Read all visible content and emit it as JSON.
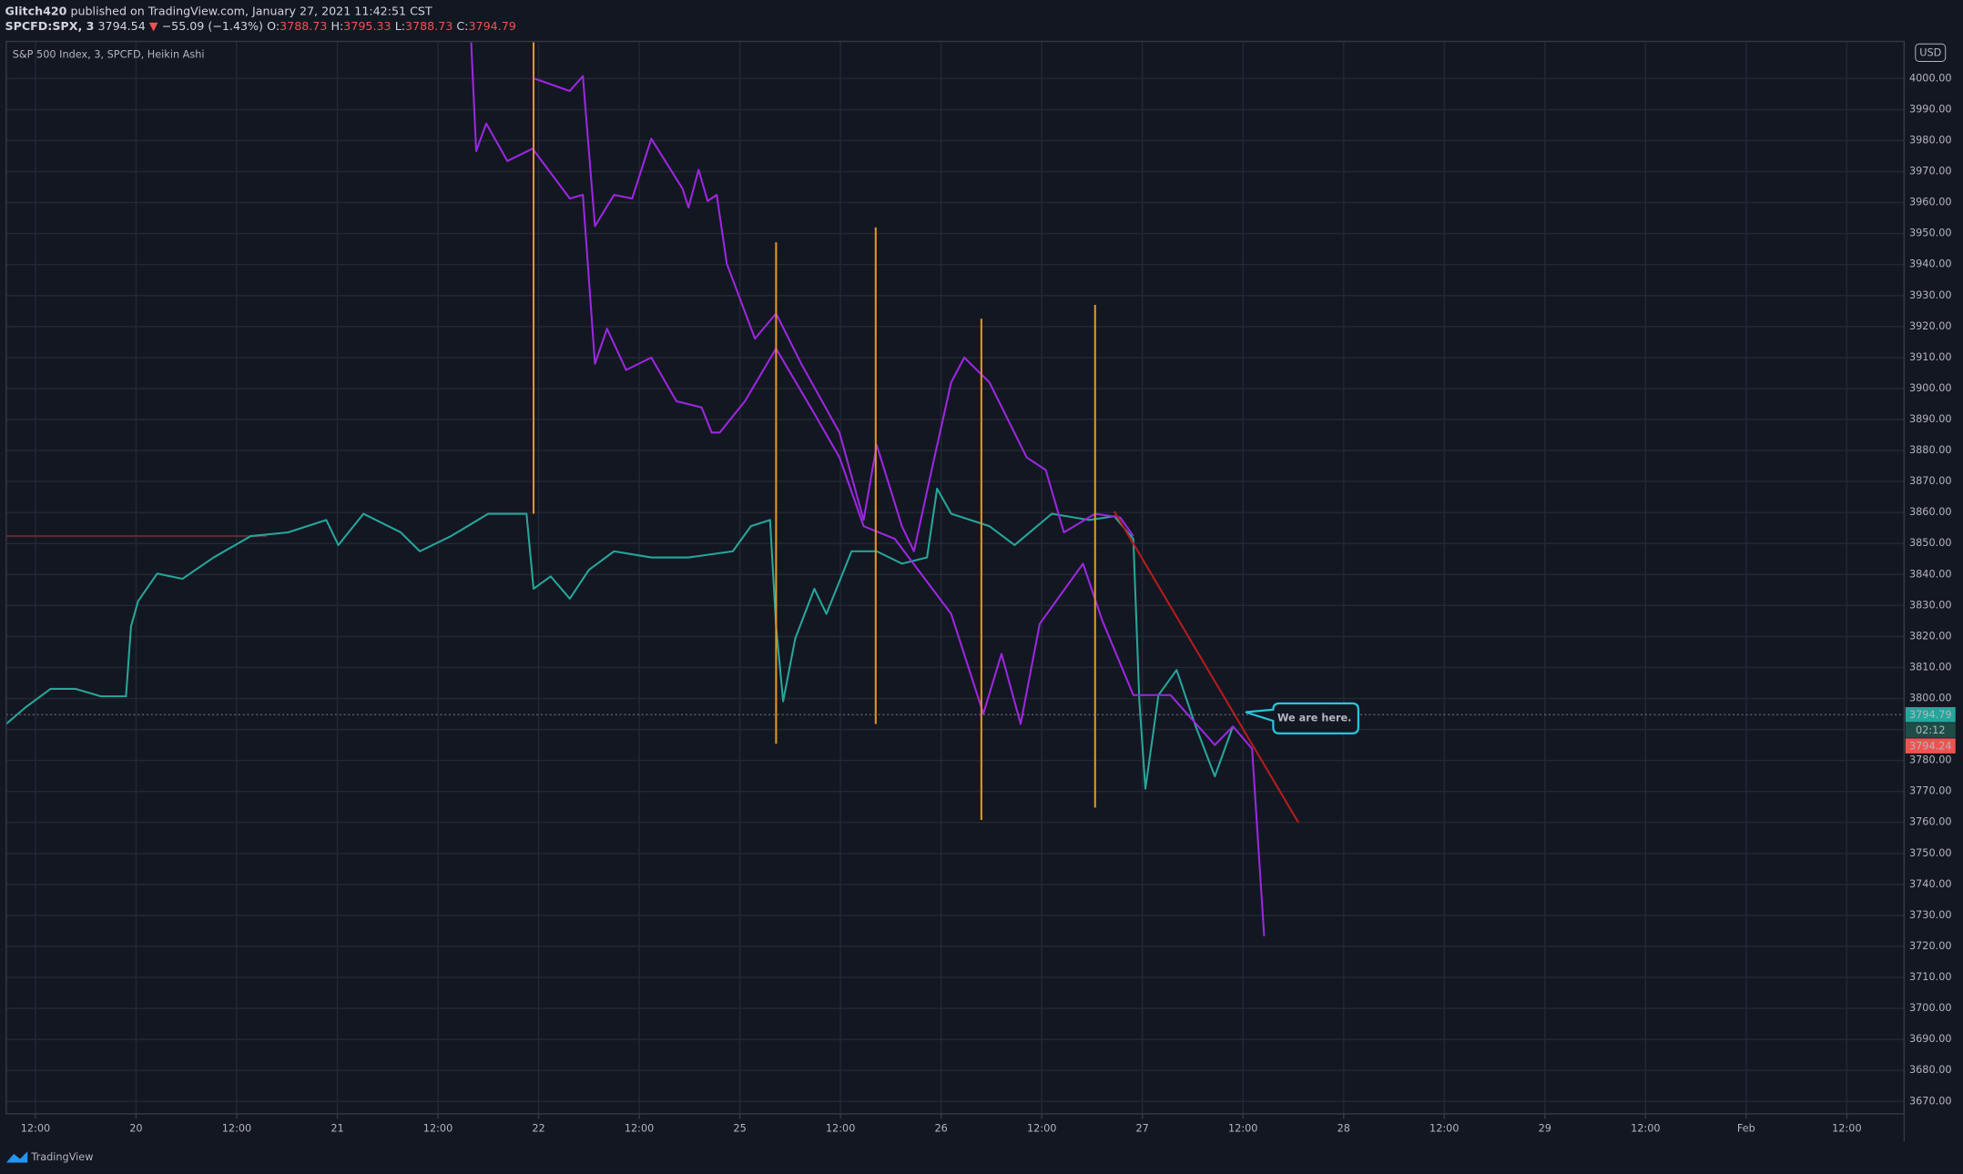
{
  "header": {
    "author": "Glitch420",
    "published": "published on TradingView.com, January 27, 2021 11:42:51 CST",
    "symbol": "SPCFD:SPX, 3",
    "last": "3794.54",
    "arrow": "▼",
    "change": "−55.09 (−1.43%)",
    "ohlc": [
      {
        "label": "O:",
        "value": "3788.73"
      },
      {
        "label": "H:",
        "value": "3795.33"
      },
      {
        "label": "L:",
        "value": "3788.73"
      },
      {
        "label": "C:",
        "value": "3794.79"
      }
    ]
  },
  "footer": "TradingView",
  "chart_data": {
    "type": "line",
    "title": "S&P 500 Index, 3, SPCFD, Heikin Ashi",
    "currency": "USD",
    "annotation": "We are here.",
    "xlim": [
      -0.29,
      18.57
    ],
    "ylim": [
      3666,
      4012
    ],
    "grid": true,
    "xticks": [
      {
        "value": 0,
        "label": "12:00"
      },
      {
        "value": 1,
        "label": "20"
      },
      {
        "value": 2,
        "label": "12:00"
      },
      {
        "value": 3,
        "label": "21"
      },
      {
        "value": 4,
        "label": "12:00"
      },
      {
        "value": 5,
        "label": "22"
      },
      {
        "value": 6,
        "label": "12:00"
      },
      {
        "value": 7,
        "label": "25"
      },
      {
        "value": 8,
        "label": "12:00"
      },
      {
        "value": 9,
        "label": "26"
      },
      {
        "value": 10,
        "label": "12:00"
      },
      {
        "value": 11,
        "label": "27"
      },
      {
        "value": 12,
        "label": "12:00"
      },
      {
        "value": 13,
        "label": "28"
      },
      {
        "value": 14,
        "label": "12:00"
      },
      {
        "value": 15,
        "label": "29"
      },
      {
        "value": 16,
        "label": "12:00"
      },
      {
        "value": 17,
        "label": "Feb"
      },
      {
        "value": 18,
        "label": "12:00"
      }
    ],
    "yticks": [
      {
        "value": 3670,
        "label": "3670.00"
      },
      {
        "value": 3680,
        "label": "3680.00"
      },
      {
        "value": 3690,
        "label": "3690.00"
      },
      {
        "value": 3700,
        "label": "3700.00"
      },
      {
        "value": 3710,
        "label": "3710.00"
      },
      {
        "value": 3720,
        "label": "3720.00"
      },
      {
        "value": 3730,
        "label": "3730.00"
      },
      {
        "value": 3740,
        "label": "3740.00"
      },
      {
        "value": 3750,
        "label": "3750.00"
      },
      {
        "value": 3760,
        "label": "3760.00"
      },
      {
        "value": 3770,
        "label": "3770.00"
      },
      {
        "value": 3780,
        "label": "3780.00"
      },
      {
        "value": 3790,
        "label": "3790.00"
      },
      {
        "value": 3800,
        "label": "3800.00"
      },
      {
        "value": 3810,
        "label": "3810.00"
      },
      {
        "value": 3820,
        "label": "3820.00"
      },
      {
        "value": 3830,
        "label": "3830.00"
      },
      {
        "value": 3840,
        "label": "3840.00"
      },
      {
        "value": 3850,
        "label": "3850.00"
      },
      {
        "value": 3860,
        "label": "3860.00"
      },
      {
        "value": 3870,
        "label": "3870.00"
      },
      {
        "value": 3880,
        "label": "3880.00"
      },
      {
        "value": 3890,
        "label": "3890.00"
      },
      {
        "value": 3900,
        "label": "3900.00"
      },
      {
        "value": 3910,
        "label": "3910.00"
      },
      {
        "value": 3920,
        "label": "3920.00"
      },
      {
        "value": 3930,
        "label": "3930.00"
      },
      {
        "value": 3940,
        "label": "3940.00"
      },
      {
        "value": 3950,
        "label": "3950.00"
      },
      {
        "value": 3960,
        "label": "3960.00"
      },
      {
        "value": 3970,
        "label": "3970.00"
      },
      {
        "value": 3980,
        "label": "3980.00"
      },
      {
        "value": 3990,
        "label": "3990.00"
      },
      {
        "value": 4000,
        "label": "4000.00"
      }
    ],
    "series": [
      {
        "color": "#5c2a35",
        "x": [
          -0.29,
          2.3
        ],
        "values": [
          3852.4,
          3852.4
        ]
      },
      {
        "color": "#26a69a",
        "x": [
          -0.29,
          -0.1,
          0.15,
          0.4,
          0.65,
          0.9,
          0.95,
          1.02,
          1.21,
          1.46,
          1.77,
          2.14,
          2.51,
          2.89,
          3.01,
          3.26,
          3.63,
          3.82,
          4.13,
          4.5,
          4.88,
          4.95,
          5.12,
          5.31,
          5.5,
          5.75,
          6.12,
          6.49,
          6.93,
          7.11,
          7.3,
          7.36,
          7.43,
          7.55,
          7.74,
          7.86,
          8.11,
          8.36,
          8.61,
          8.86,
          8.96,
          9.1,
          9.48,
          9.73,
          10.1,
          10.47,
          10.72,
          10.91,
          10.97,
          11.03,
          11.16,
          11.34,
          11.53,
          11.72,
          11.9
        ],
        "values": [
          3791.8,
          3797.1,
          3803.1,
          3803.1,
          3800.7,
          3800.7,
          3823.3,
          3831.4,
          3840.3,
          3838.6,
          3845.5,
          3852.4,
          3853.6,
          3857.6,
          3849.5,
          3859.6,
          3853.6,
          3847.5,
          3852.4,
          3859.6,
          3859.6,
          3835.4,
          3839.4,
          3832.2,
          3841.5,
          3847.5,
          3845.5,
          3845.5,
          3847.5,
          3855.6,
          3857.6,
          3823.3,
          3799.1,
          3819.3,
          3835.4,
          3827.3,
          3847.5,
          3847.5,
          3843.5,
          3845.5,
          3867.7,
          3859.6,
          3855.6,
          3849.5,
          3859.6,
          3857.6,
          3858.8,
          3851.5,
          3799.1,
          3770.9,
          3801.1,
          3809.2,
          3791.0,
          3774.9,
          3791.0
        ]
      },
      {
        "color": "#9c27e0",
        "x": [
          4.33,
          4.38,
          4.48,
          4.69,
          4.94,
          5.31,
          5.44,
          5.56,
          5.68,
          5.87,
          6.12,
          6.37,
          6.62,
          6.72,
          6.8,
          7.05,
          7.36,
          7.74,
          7.99,
          8.23,
          8.54,
          9.1,
          9.42,
          9.6,
          9.79,
          9.98,
          10.41,
          10.6,
          10.91,
          11.28,
          11.72,
          11.9,
          12.09,
          12.21
        ],
        "values": [
          4011.7,
          3976.6,
          3985.5,
          3973.4,
          3977.4,
          3961.3,
          3962.5,
          3908.0,
          3919.3,
          3906.0,
          3910.0,
          3895.9,
          3893.9,
          3885.8,
          3885.8,
          3895.9,
          3912.9,
          3891.9,
          3877.8,
          3855.6,
          3851.5,
          3827.3,
          3795.1,
          3814.4,
          3791.8,
          3824.1,
          3843.5,
          3825.3,
          3801.1,
          3801.1,
          3785.0,
          3791.0,
          3783.8,
          3723.3
        ]
      },
      {
        "color": "#9c27e0",
        "x": [
          4.96,
          5.31,
          5.44,
          5.56,
          5.75,
          5.93,
          6.12,
          6.43,
          6.49,
          6.59,
          6.68,
          6.77,
          6.87,
          7.15,
          7.36,
          7.61,
          7.99,
          8.23,
          8.36,
          8.61,
          8.73,
          8.92,
          9.1,
          9.23,
          9.48,
          9.85,
          10.04,
          10.22,
          10.53,
          10.78,
          10.91
        ],
        "values": [
          4000.0,
          3996.0,
          4000.8,
          3952.4,
          3962.5,
          3961.3,
          3980.6,
          3964.5,
          3958.4,
          3970.6,
          3960.5,
          3962.5,
          3940.3,
          3916.1,
          3924.2,
          3908.0,
          3885.8,
          3857.6,
          3881.8,
          3855.6,
          3847.5,
          3875.8,
          3902.0,
          3910.0,
          3902.0,
          3877.8,
          3873.7,
          3853.6,
          3859.6,
          3858.4,
          3852.4
        ]
      },
      {
        "color": "#e6951f",
        "x": [
          4.95,
          4.95
        ],
        "values": [
          4011.7,
          3859.6
        ]
      },
      {
        "color": "#e6951f",
        "x": [
          7.36,
          7.36
        ],
        "values": [
          3947.2,
          3785.4
        ]
      },
      {
        "color": "#e6951f",
        "x": [
          8.35,
          8.35
        ],
        "values": [
          3952.0,
          3791.8
        ]
      },
      {
        "color": "#e6951f",
        "x": [
          9.4,
          9.4
        ],
        "values": [
          3922.5,
          3760.8
        ]
      },
      {
        "color": "#e6951f",
        "x": [
          10.53,
          10.53
        ],
        "values": [
          3927.0,
          3764.8
        ]
      },
      {
        "color": "#b71c1c",
        "x": [
          10.72,
          12.55
        ],
        "values": [
          3860.4,
          3760.0
        ]
      }
    ],
    "last_price": 3794.79,
    "price_labels": [
      {
        "value": 3794.79,
        "label": "3794.79",
        "color": "#26a69a"
      },
      {
        "label": "02:12",
        "color": "#1e4d45"
      },
      {
        "value": 3794.24,
        "label": "3794.24",
        "color": "#ef5350"
      }
    ]
  }
}
